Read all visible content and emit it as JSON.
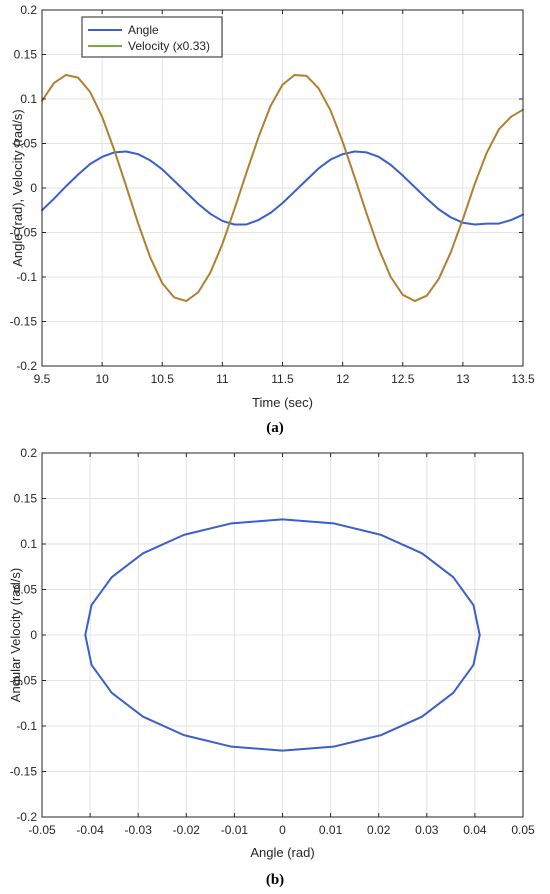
{
  "chart_data": [
    {
      "panel": "(a)",
      "type": "line",
      "xlabel": "Time (sec)",
      "ylabel": "Angle (rad), Velocity (rad/s)",
      "xlim": [
        9.5,
        13.5
      ],
      "ylim": [
        -0.2,
        0.2
      ],
      "xticks": [
        9.5,
        10,
        10.5,
        11,
        11.5,
        12,
        12.5,
        13,
        13.5
      ],
      "yticks": [
        0.2,
        0.15,
        0.1,
        0.05,
        0,
        -0.05,
        -0.1,
        -0.15,
        -0.2
      ],
      "grid": true,
      "legend": "top-left",
      "series": [
        {
          "name": "Angle",
          "color": "#3a5fcd",
          "points": [
            [
              9.5,
              -0.025
            ],
            [
              9.6,
              -0.012
            ],
            [
              9.7,
              0.002
            ],
            [
              9.8,
              0.015
            ],
            [
              9.9,
              0.027
            ],
            [
              10.0,
              0.035
            ],
            [
              10.1,
              0.04
            ],
            [
              10.2,
              0.041
            ],
            [
              10.3,
              0.038
            ],
            [
              10.4,
              0.031
            ],
            [
              10.5,
              0.021
            ],
            [
              10.6,
              0.008
            ],
            [
              10.7,
              -0.005
            ],
            [
              10.8,
              -0.018
            ],
            [
              10.9,
              -0.029
            ],
            [
              11.0,
              -0.037
            ],
            [
              11.1,
              -0.041
            ],
            [
              11.2,
              -0.041
            ],
            [
              11.3,
              -0.036
            ],
            [
              11.4,
              -0.028
            ],
            [
              11.5,
              -0.017
            ],
            [
              11.6,
              -0.004
            ],
            [
              11.7,
              0.009
            ],
            [
              11.8,
              0.022
            ],
            [
              11.9,
              0.032
            ],
            [
              12.0,
              0.038
            ],
            [
              12.1,
              0.041
            ],
            [
              12.2,
              0.04
            ],
            [
              12.3,
              0.035
            ],
            [
              12.4,
              0.026
            ],
            [
              12.5,
              0.014
            ],
            [
              12.6,
              0.001
            ],
            [
              12.7,
              -0.012
            ],
            [
              12.8,
              -0.024
            ],
            [
              12.9,
              -0.033
            ],
            [
              13.0,
              -0.039
            ],
            [
              13.1,
              -0.041
            ],
            [
              13.2,
              -0.04
            ],
            [
              13.3,
              -0.04
            ],
            [
              13.4,
              -0.036
            ],
            [
              13.5,
              -0.03
            ]
          ]
        },
        {
          "name": "Velocity (x0.33)",
          "color": "#77ac30",
          "overlap_color": "#b08030",
          "points": [
            [
              9.5,
              0.098
            ],
            [
              9.6,
              0.118
            ],
            [
              9.7,
              0.127
            ],
            [
              9.8,
              0.124
            ],
            [
              9.9,
              0.108
            ],
            [
              10.0,
              0.08
            ],
            [
              10.1,
              0.043
            ],
            [
              10.2,
              0.002
            ],
            [
              10.3,
              -0.04
            ],
            [
              10.4,
              -0.078
            ],
            [
              10.5,
              -0.107
            ],
            [
              10.6,
              -0.123
            ],
            [
              10.7,
              -0.127
            ],
            [
              10.8,
              -0.117
            ],
            [
              10.9,
              -0.095
            ],
            [
              11.0,
              -0.063
            ],
            [
              11.1,
              -0.024
            ],
            [
              11.2,
              0.017
            ],
            [
              11.3,
              0.057
            ],
            [
              11.4,
              0.092
            ],
            [
              11.5,
              0.116
            ],
            [
              11.6,
              0.127
            ],
            [
              11.7,
              0.126
            ],
            [
              11.8,
              0.112
            ],
            [
              11.9,
              0.087
            ],
            [
              12.0,
              0.052
            ],
            [
              12.1,
              0.012
            ],
            [
              12.2,
              -0.029
            ],
            [
              12.3,
              -0.068
            ],
            [
              12.4,
              -0.1
            ],
            [
              12.5,
              -0.12
            ],
            [
              12.6,
              -0.127
            ],
            [
              12.7,
              -0.121
            ],
            [
              12.8,
              -0.102
            ],
            [
              12.9,
              -0.072
            ],
            [
              13.0,
              -0.035
            ],
            [
              13.1,
              0.005
            ],
            [
              13.2,
              0.04
            ],
            [
              13.3,
              0.066
            ],
            [
              13.4,
              0.08
            ],
            [
              13.5,
              0.088
            ]
          ]
        }
      ]
    },
    {
      "panel": "(b)",
      "type": "line",
      "xlabel": "Angle (rad)",
      "ylabel": "Angular Velocity (rad/s)",
      "xlim": [
        -0.05,
        0.05
      ],
      "ylim": [
        -0.2,
        0.2
      ],
      "xticks": [
        -0.05,
        -0.04,
        -0.03,
        -0.02,
        -0.01,
        0,
        0.01,
        0.02,
        0.03,
        0.04,
        0.05
      ],
      "yticks": [
        0.2,
        0.15,
        0.1,
        0.05,
        0,
        -0.05,
        -0.1,
        -0.15,
        -0.2
      ],
      "grid": true,
      "series": [
        {
          "color": "#3a5fcd",
          "points": [
            [
              0.041,
              0
            ],
            [
              0.0397,
              0.0329
            ],
            [
              0.0355,
              0.0635
            ],
            [
              0.029,
              0.0898
            ],
            [
              0.0205,
              0.11
            ],
            [
              0.0106,
              0.1227
            ],
            [
              0,
              0.127
            ],
            [
              -0.0106,
              0.1227
            ],
            [
              -0.0205,
              0.11
            ],
            [
              -0.029,
              0.0898
            ],
            [
              -0.0355,
              0.0635
            ],
            [
              -0.0397,
              0.0329
            ],
            [
              -0.041,
              0
            ],
            [
              -0.0397,
              -0.0329
            ],
            [
              -0.0355,
              -0.0635
            ],
            [
              -0.029,
              -0.0898
            ],
            [
              -0.0205,
              -0.11
            ],
            [
              -0.0106,
              -0.1227
            ],
            [
              0,
              -0.127
            ],
            [
              0.0106,
              -0.1227
            ],
            [
              0.0205,
              -0.11
            ],
            [
              0.029,
              -0.0898
            ],
            [
              0.0355,
              -0.0635
            ],
            [
              0.0397,
              -0.0329
            ],
            [
              0.041,
              0
            ]
          ]
        }
      ]
    }
  ]
}
